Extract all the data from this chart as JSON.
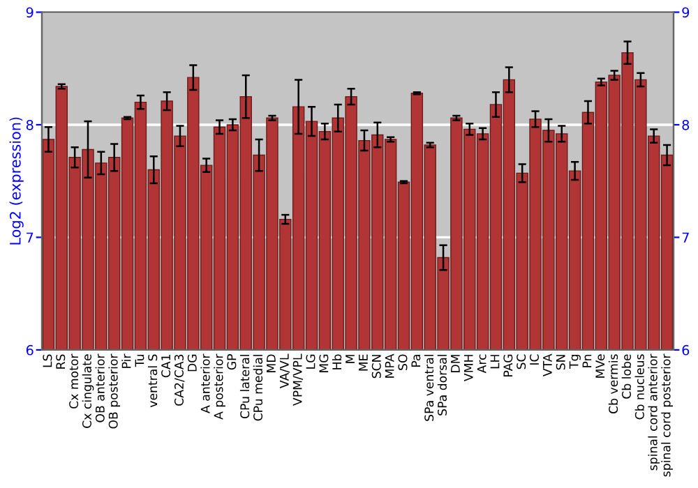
{
  "chart_data": {
    "type": "bar",
    "ylabel": "Log2 (expression)",
    "categories": [
      "LS",
      "RS",
      "Cx motor",
      "Cx cingulate",
      "OB anterior",
      "OB posterior",
      "Pir",
      "Tu",
      "ventral S",
      "CA1",
      "CA2/CA3",
      "DG",
      "A anterior",
      "A posterior",
      "GP",
      "CPu lateral",
      "CPu medial",
      "MD",
      "VA/VL",
      "VPM/VPL",
      "LG",
      "MG",
      "Hb",
      "M",
      "ME",
      "SCN",
      "MPA",
      "SO",
      "Pa",
      "SPa ventral",
      "SPa dorsal",
      "DM",
      "VMH",
      "Arc",
      "LH",
      "PAG",
      "SC",
      "IC",
      "VTA",
      "SN",
      "Tg",
      "Pn",
      "MVe",
      "Cb vermis",
      "Cb lobe",
      "Cb nucleus",
      "spinal cord anterior",
      "spinal cord posterior"
    ],
    "values": [
      7.87,
      8.34,
      7.71,
      7.78,
      7.66,
      7.71,
      8.06,
      8.2,
      7.6,
      8.21,
      7.9,
      8.42,
      7.64,
      7.98,
      8.0,
      8.25,
      7.73,
      8.06,
      7.16,
      8.16,
      8.03,
      7.94,
      8.06,
      8.25,
      7.86,
      7.91,
      7.87,
      7.49,
      8.28,
      7.82,
      6.82,
      8.06,
      7.96,
      7.92,
      8.18,
      8.4,
      7.57,
      8.05,
      7.95,
      7.92,
      7.59,
      8.11,
      8.38,
      8.44,
      8.64,
      8.4,
      7.9,
      7.73
    ],
    "errors": [
      0.11,
      0.02,
      0.09,
      0.25,
      0.1,
      0.12,
      0.01,
      0.06,
      0.12,
      0.08,
      0.09,
      0.11,
      0.06,
      0.06,
      0.05,
      0.19,
      0.14,
      0.02,
      0.04,
      0.24,
      0.13,
      0.07,
      0.12,
      0.07,
      0.09,
      0.11,
      0.02,
      0.01,
      0.01,
      0.02,
      0.11,
      0.02,
      0.05,
      0.05,
      0.11,
      0.11,
      0.08,
      0.07,
      0.1,
      0.07,
      0.08,
      0.1,
      0.03,
      0.04,
      0.1,
      0.06,
      0.06,
      0.09
    ],
    "color": "#b23535",
    "ylim": [
      6,
      9
    ],
    "yticks": [
      6,
      7,
      8,
      9
    ],
    "y2lim": [
      6,
      9
    ],
    "y2ticks": [
      6,
      7,
      8,
      9
    ],
    "grid": "y"
  }
}
